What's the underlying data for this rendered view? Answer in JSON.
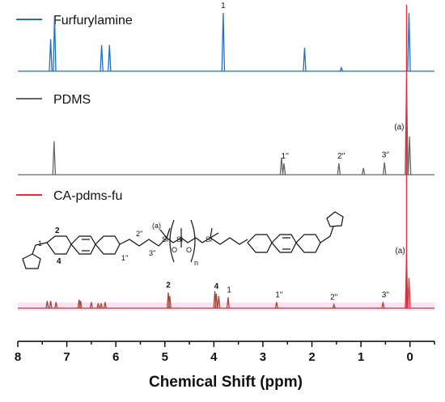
{
  "chart_data": {
    "type": "line",
    "xlabel": "Chemical Shift (ppm)",
    "xlim": [
      8,
      -0.5
    ],
    "x_reversed": true,
    "x_ticks": [
      "8",
      "7",
      "6",
      "5",
      "4",
      "3",
      "2",
      "1",
      "0"
    ],
    "series": [
      {
        "name": "Furfurylamine",
        "color": "#1f6fc5",
        "peaks": [
          {
            "x": 7.33,
            "h": 0.55
          },
          {
            "x": 7.25,
            "h": 0.95
          },
          {
            "x": 6.29,
            "h": 0.45
          },
          {
            "x": 6.13,
            "h": 0.45
          },
          {
            "x": 3.81,
            "h": 1.0,
            "label": "1"
          },
          {
            "x": 2.15,
            "h": 0.4
          },
          {
            "x": 1.4,
            "h": 0.06
          },
          {
            "x": 0.02,
            "h": 1.0
          }
        ],
        "annotations": [
          {
            "x": 3.81,
            "text": "1"
          }
        ]
      },
      {
        "name": "PDMS",
        "color": "#666666",
        "peaks": [
          {
            "x": 7.26,
            "h": 0.35
          },
          {
            "x": 2.62,
            "h": 0.18,
            "label": "1''"
          },
          {
            "x": 2.57,
            "h": 0.12
          },
          {
            "x": 1.45,
            "h": 0.12,
            "label": "2''"
          },
          {
            "x": 0.95,
            "h": 0.07
          },
          {
            "x": 0.52,
            "h": 0.13,
            "label": "3''"
          },
          {
            "x": 0.07,
            "h": 1.0,
            "label": "(a)"
          },
          {
            "x": 0.01,
            "h": 0.4
          }
        ],
        "annotations": [
          {
            "x": 2.55,
            "text": "1''"
          },
          {
            "x": 1.4,
            "text": "2''"
          },
          {
            "x": 0.5,
            "text": "3''"
          },
          {
            "x": 0.22,
            "text": "(a)"
          }
        ]
      },
      {
        "name": "CA-pdms-fu",
        "color": "#e0303a",
        "peaks": [
          {
            "x": 7.4,
            "h": 0.06
          },
          {
            "x": 7.33,
            "h": 0.06
          },
          {
            "x": 7.22,
            "h": 0.05
          },
          {
            "x": 6.75,
            "h": 0.07
          },
          {
            "x": 6.72,
            "h": 0.06
          },
          {
            "x": 6.5,
            "h": 0.05
          },
          {
            "x": 6.36,
            "h": 0.04
          },
          {
            "x": 6.3,
            "h": 0.04
          },
          {
            "x": 6.22,
            "h": 0.05
          },
          {
            "x": 4.93,
            "h": 0.13,
            "label": "2"
          },
          {
            "x": 4.9,
            "h": 0.1
          },
          {
            "x": 3.98,
            "h": 0.14,
            "label": "4"
          },
          {
            "x": 3.95,
            "h": 0.12
          },
          {
            "x": 3.9,
            "h": 0.1
          },
          {
            "x": 3.71,
            "h": 0.09,
            "label": "1"
          },
          {
            "x": 2.72,
            "h": 0.05,
            "label": "1''"
          },
          {
            "x": 1.55,
            "h": 0.03,
            "label": "2''"
          },
          {
            "x": 0.55,
            "h": 0.05,
            "label": "3''"
          },
          {
            "x": 0.07,
            "h": 0.45,
            "label": "(a)"
          },
          {
            "x": 0.02,
            "h": 0.25
          }
        ],
        "annotations": [
          {
            "x": 4.93,
            "text": "2",
            "bold": true
          },
          {
            "x": 3.95,
            "text": "4",
            "bold": true
          },
          {
            "x": 3.69,
            "text": "1"
          },
          {
            "x": 2.67,
            "text": "1''"
          },
          {
            "x": 1.55,
            "text": "2''"
          },
          {
            "x": 0.5,
            "text": "3''"
          },
          {
            "x": 0.2,
            "text": "(a)"
          }
        ]
      }
    ],
    "structure_labels": [
      "1",
      "2",
      "4",
      "(a)",
      "1''",
      "2''",
      "3''",
      "Si",
      "O",
      "n"
    ],
    "grid": false
  }
}
